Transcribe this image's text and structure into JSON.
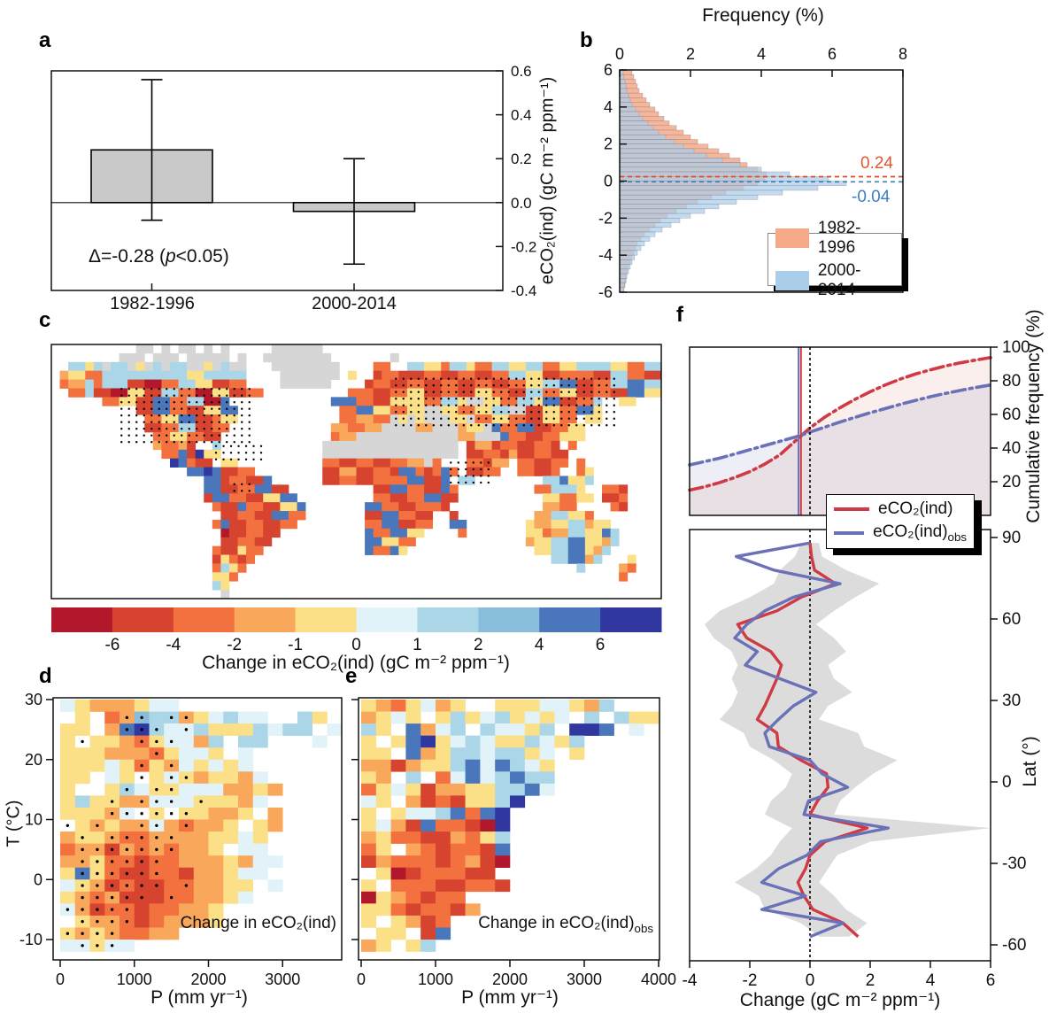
{
  "palette": {
    "colors": [
      "#b2182b",
      "#d6432f",
      "#f3703f",
      "#f9a85b",
      "#fbe087",
      "#e1f3f8",
      "#abd6e8",
      "#88bedc",
      "#4a77bb",
      "#30379e"
    ],
    "nodata": "#d6d6d6",
    "bar_gray": "#c9c9c9",
    "hist_orange": "#f5a987",
    "hist_blue": "#aacde9",
    "dash_red": "#d94f2a",
    "dash_blue": "#3f7fbe",
    "f_red": "#cf3a44",
    "f_blue": "#6a71b7",
    "envelope_gray": "#dcdcdc"
  },
  "panels": {
    "a": {
      "letter": "a",
      "ylabel": "eCO₂(ind) (gC m⁻² ppm⁻¹)",
      "annotation_pre": "Δ=-0.28 (",
      "annotation_p": "p",
      "annotation_post": "<0.05)",
      "cat1": "1982-1996",
      "cat2": "2000-2014"
    },
    "b": {
      "letter": "b",
      "title": "Frequency (%)",
      "mean_label_1": "0.24",
      "mean_label_2": "-0.04",
      "legend": [
        {
          "label": "1982-1996"
        },
        {
          "label": "2000-2014"
        }
      ]
    },
    "c": {
      "letter": "c",
      "caption": "Change in eCO₂(ind) (gC m⁻² ppm⁻¹)"
    },
    "d": {
      "letter": "d",
      "xlabel": "P (mm yr⁻¹)",
      "ylabel": "T (°C)",
      "annotation": "Change in eCO₂(ind)"
    },
    "e": {
      "letter": "e",
      "xlabel": "P (mm yr⁻¹)",
      "annotation_main": "Change in eCO₂(ind)",
      "annotation_sub": "obs"
    },
    "f": {
      "letter": "f",
      "ylabel_top": "Cumulative frequency (%)",
      "ylabel_bottom": "Lat (°)",
      "xlabel": "Change (gC m⁻² ppm⁻¹)",
      "legend_1_label": "eCO₂(ind)",
      "legend_2_main": "eCO₂(ind)",
      "legend_2_sub": "obs"
    }
  },
  "chart_data": [
    {
      "panel": "a",
      "type": "bar",
      "categories": [
        "1982-1996",
        "2000-2014"
      ],
      "values": [
        0.24,
        -0.04
      ],
      "error_low": [
        -0.08,
        -0.28
      ],
      "error_high": [
        0.56,
        0.2
      ],
      "delta_annotation": "Δ=-0.28 (p<0.05)",
      "ylabel": "eCO2(ind) (gC m-2 ppm-1)",
      "ylim": [
        -0.4,
        0.6
      ],
      "yticks": [
        0.6,
        0.4,
        0.2,
        0.0,
        -0.2,
        -0.4
      ]
    },
    {
      "panel": "b",
      "type": "bar",
      "orientation": "horizontal-histogram",
      "title": "Frequency (%)",
      "xlim": [
        0,
        8
      ],
      "xticks": [
        0,
        2,
        4,
        6,
        8
      ],
      "ylim": [
        -6,
        6
      ],
      "yticks": [
        6,
        4,
        2,
        0,
        -2,
        -4,
        -6
      ],
      "bin_center_start": 5.875,
      "bin_step": -0.25,
      "series": [
        {
          "name": "1982-1996",
          "mean": 0.24,
          "values": [
            0.35,
            0.4,
            0.45,
            0.5,
            0.55,
            0.65,
            0.75,
            0.85,
            1.0,
            1.1,
            1.25,
            1.4,
            1.6,
            1.8,
            2.0,
            2.2,
            2.5,
            2.8,
            3.1,
            3.4,
            3.6,
            3.9,
            4.15,
            4.1,
            3.9,
            3.5,
            3.0,
            2.6,
            2.2,
            1.9,
            1.6,
            1.35,
            1.15,
            1.0,
            0.85,
            0.7,
            0.6,
            0.5,
            0.45,
            0.4,
            0.35,
            0.3,
            0.25,
            0.22,
            0.2,
            0.18,
            0.15,
            0.12
          ]
        },
        {
          "name": "2000-2014",
          "mean": -0.04,
          "values": [
            0.1,
            0.12,
            0.15,
            0.18,
            0.2,
            0.25,
            0.3,
            0.35,
            0.45,
            0.55,
            0.65,
            0.8,
            0.95,
            1.1,
            1.3,
            1.55,
            1.8,
            2.1,
            2.45,
            2.9,
            3.4,
            4.0,
            4.8,
            5.9,
            6.4,
            5.6,
            4.6,
            3.9,
            3.3,
            2.8,
            2.4,
            2.0,
            1.7,
            1.45,
            1.2,
            1.0,
            0.85,
            0.7,
            0.6,
            0.5,
            0.42,
            0.35,
            0.3,
            0.25,
            0.2,
            0.17,
            0.14,
            0.12
          ]
        }
      ]
    },
    {
      "panel": "c",
      "type": "heatmap",
      "note": "approximate 5-degree world raster; digits index palette, g = no data, . = ocean",
      "colorbar_ticks": [
        -6,
        -4,
        -2,
        -1,
        0,
        1,
        2,
        4,
        6
      ],
      "caption": "Change in eCO2(ind) (gC m-2 ppm-1)",
      "grid": [
        "..........gg.g.gg.g.g.....gggggg........................................",
        "........ggg.ggg.ggggg.g..gggggggg.......g...............................",
        "..6646g66g4g6g66gg4g6gg...gggggggg....22..664426642266446622446666442266",
        ".3442266666666664466666....ggggggg.4..1221112211221122664411222211662211",
        ".2336266611002266441122....gggggg....12211221122112211224466881122668866",
        "..22611004411662200441122..........222112244112211442211662244112211884466",
        "......224411882266008............8882211444422664gg44226648811226..44..",
        "..........118822114488............2288442244gg44224466gg114422884......",
        "...........22448811244............223322g4g4ggg44g224422114422.44......",
        "...........1122661122............332233gggg33ggg344g82288112244........",
        "............22442211.............233gggggggggggg33ggg8221122444.........",
        "............32231..6............gggggggggggggggg.13312211221.2..........",
        ".............2281944............gggggggggggggggg.112213112211...........",
        "..............98211.44..........221122112233g2...22133.221122.2.........",
        "................88981122........1133112218821282.1122..22112..24........",
        "..................88122118......112211222288118 66........668446.........",
        "..................8811228811..........1188221182.........226664..221....",
        "..................18822114488.........2211228811..........442244.112....",
        "...................21182211448.......8822112221...........3322....21....",
        "....................1122118822.......11882211..1.........3366442........",
        "...................2811221122........22881122..88.......4334466344......",
        "....................0112211..........8228844....2.......44233664486.....",
        "....................112211...........884422.............34466884436.....",
        "...................211422............82284...............446688436......",
        "...................14212...................................668836...4...",
        "...................2642.......................................6....32...",
        "...................442.............................................2....",
        "...................64....................................................",
        "....................g...................................................."
      ],
      "stipple_regions": [
        [
          0.115,
          0.175,
          0.335,
          0.4
        ],
        [
          0.565,
          0.135,
          0.925,
          0.335
        ],
        [
          0.27,
          0.4,
          0.345,
          0.475
        ],
        [
          0.655,
          0.465,
          0.725,
          0.545
        ],
        [
          0.3,
          0.55,
          0.335,
          0.595
        ]
      ]
    },
    {
      "panel": "d",
      "type": "heatmap",
      "xlabel": "P (mm yr-1)",
      "ylabel": "T (degC)",
      "xlim": [
        0,
        3800
      ],
      "ylim": [
        -12,
        30
      ],
      "xticks": [
        0,
        1000,
        2000,
        3000
      ],
      "yticks": [
        30,
        20,
        10,
        0,
        -10
      ],
      "cell_p": 200,
      "cell_t": 2,
      "grid": [
        "54333455...........",
        ".4.23766345655..64.",
        "44.38965564446566.5",
        "4.443245536.66...5.",
        "44433324554.5......",
        "4445424354545......",
        "44.54.45434435.....",
        "4..465445553343....",
        "46443355544435.....",
        "44435.4.44334.3....",
        ".43433532334.43....",
        "34432233334454.....",
        "23313232334.55.....",
        "334221223334355....",
        "48421122133455.....",
        "5431211223344.5....",
        "4323111223345......",
        "53122122334........",
        ".4332123334........",
        "43432233...........",
        "55455.............."
      ],
      "dots": [
        [
          1,
          4
        ],
        [
          1,
          5
        ],
        [
          1,
          7
        ],
        [
          1,
          8
        ],
        [
          2,
          4
        ],
        [
          2,
          5
        ],
        [
          2,
          6
        ],
        [
          2,
          8
        ],
        [
          3,
          1
        ],
        [
          3,
          5
        ],
        [
          3,
          6
        ],
        [
          3,
          7
        ],
        [
          4,
          6
        ],
        [
          5,
          5
        ],
        [
          5,
          7
        ],
        [
          6,
          5
        ],
        [
          6,
          7
        ],
        [
          6,
          8
        ],
        [
          7,
          4
        ],
        [
          7,
          6
        ],
        [
          7,
          7
        ],
        [
          8,
          3
        ],
        [
          8,
          5
        ],
        [
          8,
          6
        ],
        [
          8,
          7
        ],
        [
          8,
          9
        ],
        [
          9,
          3
        ],
        [
          9,
          4
        ],
        [
          9,
          5
        ],
        [
          9,
          6
        ],
        [
          9,
          7
        ],
        [
          9,
          8
        ],
        [
          10,
          0
        ],
        [
          10,
          2
        ],
        [
          10,
          5
        ],
        [
          10,
          6
        ],
        [
          10,
          8
        ],
        [
          11,
          1
        ],
        [
          11,
          3
        ],
        [
          11,
          4
        ],
        [
          11,
          5
        ],
        [
          11,
          6
        ],
        [
          11,
          7
        ],
        [
          12,
          1
        ],
        [
          12,
          2
        ],
        [
          12,
          3
        ],
        [
          12,
          4
        ],
        [
          12,
          5
        ],
        [
          12,
          6
        ],
        [
          12,
          7
        ],
        [
          13,
          1
        ],
        [
          13,
          2
        ],
        [
          13,
          3
        ],
        [
          13,
          4
        ],
        [
          13,
          5
        ],
        [
          13,
          6
        ],
        [
          14,
          1
        ],
        [
          14,
          2
        ],
        [
          14,
          3
        ],
        [
          14,
          4
        ],
        [
          14,
          5
        ],
        [
          14,
          6
        ],
        [
          15,
          1
        ],
        [
          15,
          2
        ],
        [
          15,
          3
        ],
        [
          15,
          4
        ],
        [
          15,
          5
        ],
        [
          15,
          6
        ],
        [
          15,
          8
        ],
        [
          16,
          1
        ],
        [
          16,
          2
        ],
        [
          16,
          3
        ],
        [
          16,
          4
        ],
        [
          16,
          5
        ],
        [
          16,
          7
        ],
        [
          17,
          0
        ],
        [
          17,
          1
        ],
        [
          17,
          2
        ],
        [
          17,
          3
        ],
        [
          17,
          4
        ],
        [
          18,
          1
        ],
        [
          18,
          2
        ],
        [
          18,
          3
        ],
        [
          18,
          4
        ],
        [
          19,
          0
        ],
        [
          19,
          1
        ],
        [
          19,
          2
        ],
        [
          19,
          3
        ],
        [
          20,
          1
        ],
        [
          20,
          2
        ],
        [
          20,
          3
        ]
      ]
    },
    {
      "panel": "e",
      "type": "heatmap",
      "xlabel": "P (mm yr-1)",
      "xlim": [
        0,
        4000
      ],
      "ylim": [
        -12,
        30
      ],
      "xticks": [
        0,
        1000,
        2000,
        3000,
        4000
      ],
      "yticks": [
        30,
        20,
        10,
        0,
        -10
      ],
      "cell_p": 200,
      "cell_t": 2,
      "grid": [
        "4324534..44455436...",
        "3454.464564545.6.644",
        "64.8356.65546.998.5.",
        "4.4894565446546.....",
        "44.8346656645.4.....",
        "3313446858654.......",
        "43.6.25856866.......",
        "2454133446685.......",
        "54.31214469.........",
        "4.45568289..........",
        "4531822109..........",
        "3422113246..........",
        "24.3212218..........",
        "1322212310..........",
        ".40122211...........",
        "4.22211221..........",
        "0432122.............",
        "44212213............",
        "4.4312..............",
        ".44.18..............",
        "34.46..............."
      ]
    },
    {
      "panel": "f_top",
      "type": "line",
      "ylabel": "Cumulative frequency (%)",
      "xlim": [
        -4,
        6
      ],
      "ylim": [
        0,
        100
      ],
      "yticks": [
        100,
        80,
        60,
        40,
        20
      ],
      "x": [
        -4,
        -3.5,
        -3,
        -2.5,
        -2,
        -1.5,
        -1,
        -0.5,
        0,
        0.5,
        1,
        1.5,
        2,
        2.5,
        3,
        3.5,
        4,
        4.5,
        5,
        5.5,
        6
      ],
      "series": [
        {
          "name": "eCO2(ind)",
          "vline": -0.3,
          "values": [
            15,
            17,
            19.5,
            22.5,
            26,
            30.5,
            36,
            44,
            52,
            58.5,
            64,
            69,
            73.5,
            77.5,
            81,
            84,
            86.5,
            88.8,
            90.7,
            92.3,
            93.8
          ]
        },
        {
          "name": "eCO2(ind)obs",
          "vline": -0.38,
          "values": [
            30,
            32,
            34,
            36.5,
            39,
            41.5,
            44,
            46.5,
            49.5,
            52.5,
            55.5,
            58.3,
            61,
            63.5,
            66,
            68.3,
            70.5,
            72.5,
            74.3,
            76,
            77.5
          ]
        }
      ],
      "zero_dash_x": 0
    },
    {
      "panel": "f_bottom",
      "type": "line",
      "xlabel": "Change (gC m-2 ppm-1)",
      "ylabel": "Lat (deg)",
      "xlim": [
        -4,
        6
      ],
      "ylim": [
        -60,
        90
      ],
      "xticks": [
        -4,
        -2,
        0,
        2,
        4,
        6
      ],
      "yticks": [
        90,
        60,
        30,
        0,
        -30,
        -60
      ],
      "lat": [
        88,
        83,
        78,
        73,
        68,
        63,
        58,
        53,
        48,
        43,
        38,
        33,
        28,
        23,
        18,
        13,
        8,
        3,
        -2,
        -7,
        -12,
        -17,
        -22,
        -27,
        -32,
        -37,
        -42,
        -47,
        -52,
        -57
      ],
      "series": [
        {
          "name": "eCO2(ind)",
          "values": [
            0.0,
            0.05,
            0.15,
            0.85,
            -0.3,
            -1.1,
            -2.4,
            -2.1,
            -1.3,
            -0.95,
            -1.1,
            -1.3,
            -1.5,
            -1.75,
            -1.1,
            -1.05,
            -0.3,
            0.55,
            0.6,
            0.25,
            0.0,
            1.9,
            0.5,
            0.0,
            -0.15,
            -0.4,
            -0.2,
            0.1,
            1.1,
            1.6
          ]
        },
        {
          "name": "eCO2(ind)obs",
          "values": [
            0.0,
            -2.45,
            -1.2,
            1.0,
            -0.55,
            -1.5,
            -2.1,
            -2.5,
            -1.75,
            -2.15,
            -1.0,
            0.2,
            -0.55,
            -1.05,
            -1.5,
            -1.35,
            0.0,
            0.4,
            1.25,
            -0.05,
            -0.2,
            2.6,
            0.35,
            -0.1,
            -1.05,
            -1.6,
            -0.15,
            -1.6,
            1.1,
            0.0
          ]
        }
      ],
      "envelope_low": [
        -0.3,
        -0.5,
        -1.0,
        -1.2,
        -2.0,
        -3.0,
        -3.5,
        -3.2,
        -2.6,
        -2.4,
        -2.6,
        -2.4,
        -2.6,
        -3.0,
        -2.2,
        -2.0,
        -1.2,
        -0.6,
        -0.8,
        -1.3,
        -1.5,
        -0.6,
        -1.0,
        -1.3,
        -1.8,
        -2.5,
        -1.7,
        -1.5,
        -0.3,
        0.3
      ],
      "envelope_high": [
        0.3,
        0.4,
        1.2,
        2.3,
        1.5,
        0.8,
        0.2,
        0.8,
        1.2,
        0.6,
        0.8,
        1.4,
        0.6,
        0.3,
        1.6,
        1.8,
        2.9,
        2.1,
        1.5,
        1.0,
        0.8,
        6.0,
        2.0,
        0.9,
        0.6,
        0.3,
        0.8,
        1.2,
        1.9,
        1.3
      ]
    }
  ]
}
